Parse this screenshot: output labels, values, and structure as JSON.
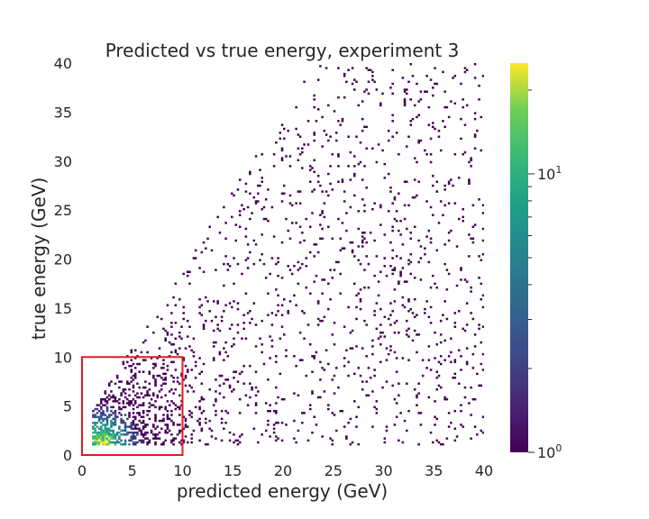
{
  "chart_data": {
    "type": "heatmap",
    "title": "Predicted vs true energy, experiment 3",
    "xlabel": "predicted energy (GeV)",
    "ylabel": "true energy (GeV)",
    "xlim": [
      0,
      40
    ],
    "ylim": [
      0,
      40
    ],
    "x_ticks": [
      "0",
      "5",
      "10",
      "15",
      "20",
      "25",
      "30",
      "35",
      "40"
    ],
    "y_ticks": [
      "0",
      "5",
      "10",
      "15",
      "20",
      "25",
      "30",
      "35",
      "40"
    ],
    "colormap": "viridis",
    "colorbar": {
      "scale": "log",
      "range": [
        1,
        25
      ],
      "tick_base": "10",
      "major_ticks": [
        {
          "value": 1,
          "exponent": "0"
        },
        {
          "value": 10,
          "exponent": "1"
        }
      ]
    },
    "grid": false,
    "bins_per_axis": 200,
    "density": {
      "description_of_bins": "2D histogram of events; counts highest near (2,1), falling off with distance; empty bins not drawn",
      "peak_count": 25,
      "peak_location": [
        2,
        1.2
      ],
      "min_true_energy": 1,
      "min_predicted_energy": 1
    },
    "annotations": [
      {
        "type": "rectangle",
        "x": [
          0,
          10
        ],
        "y": [
          0,
          10
        ],
        "color": "#e41a1c"
      }
    ]
  },
  "colors": {
    "highlight_box": "#e41a1c",
    "text": "#262626",
    "background": "#ffffff"
  }
}
